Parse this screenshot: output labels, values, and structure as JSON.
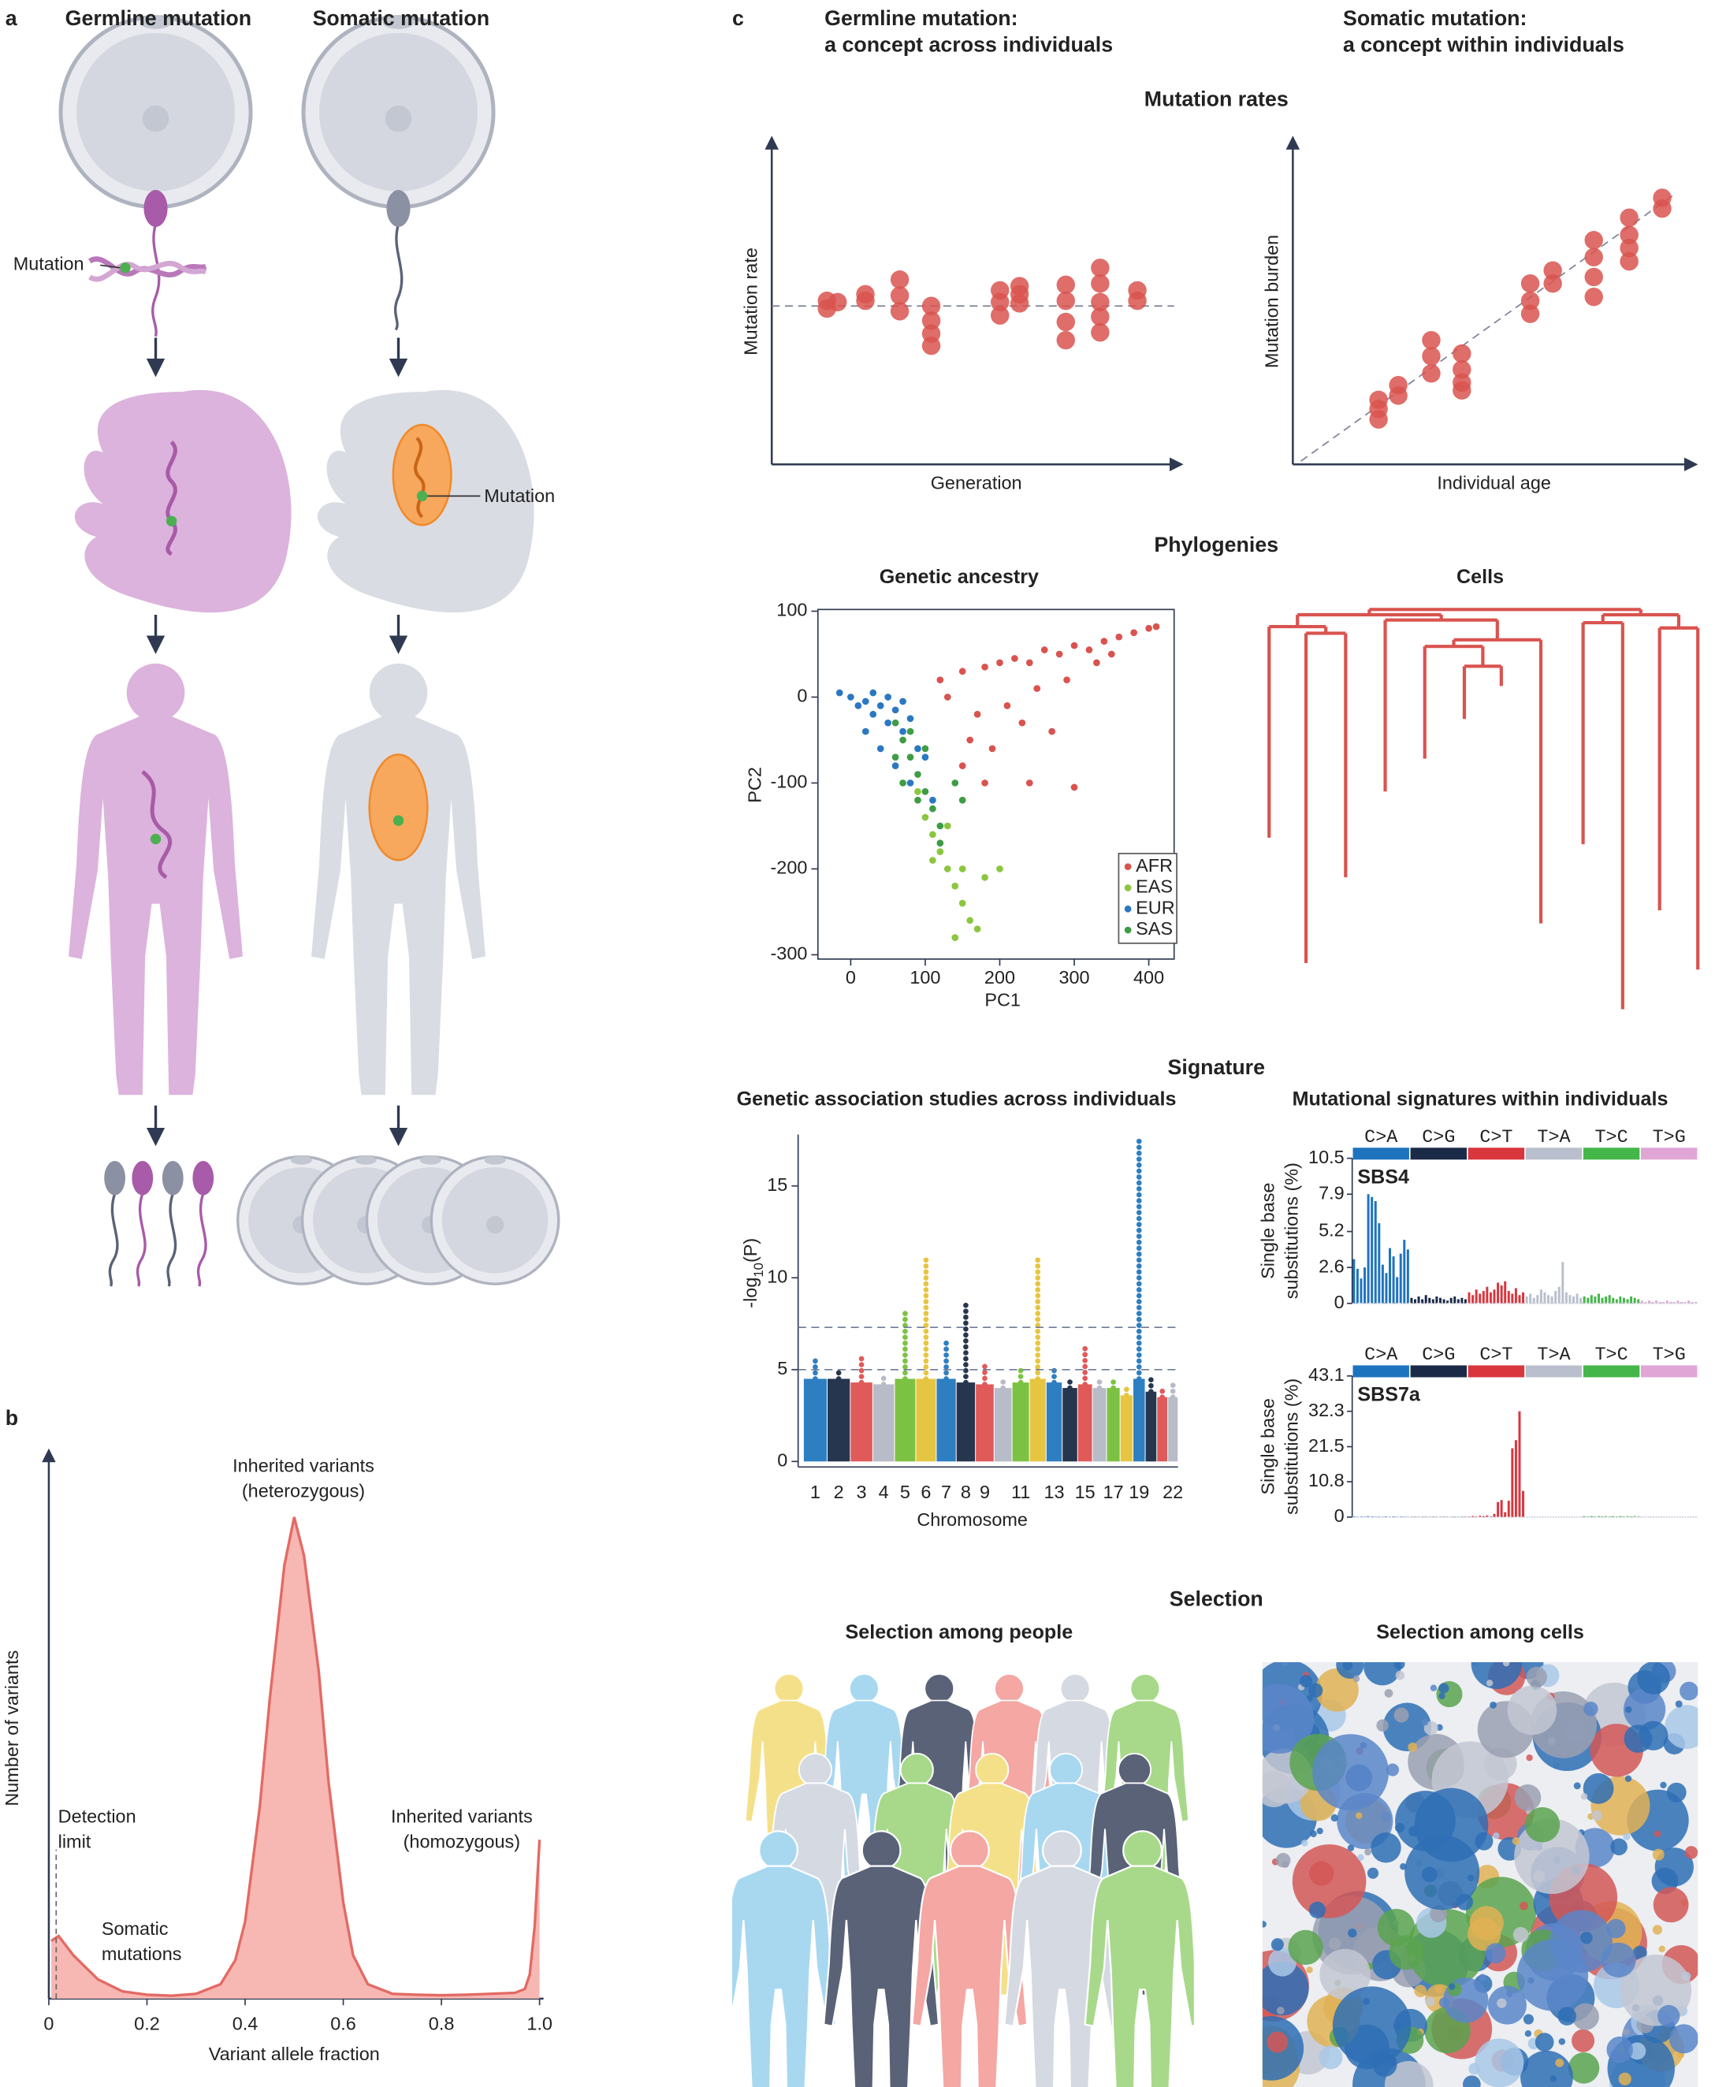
{
  "figure": {
    "label_a": "a",
    "label_b": "b",
    "label_c": "c",
    "germline_title": "Germline mutation",
    "somatic_title": "Somatic mutation",
    "mutation_label_germline": "Mutation",
    "mutation_label_somatic": "Mutation",
    "column_germline": [
      "Germline mutation:",
      "a concept across individuals"
    ],
    "column_somatic": [
      "Somatic mutation:",
      "a concept within individuals"
    ],
    "section_rates": "Mutation rates",
    "section_phylogenies": "Phylogenies",
    "section_signature": "Signature",
    "section_selection": "Selection",
    "cells_title": "Cells",
    "signatures_title": "Mutational signatures within individuals",
    "people_title": "Selection among people",
    "cells_selection_title": "Selection among cells"
  },
  "chart_data": [
    {
      "type": "area",
      "xlabel": "Variant allele fraction",
      "ylabel": "Number of variants",
      "x": [
        0.005,
        0.02,
        0.05,
        0.1,
        0.15,
        0.2,
        0.25,
        0.3,
        0.35,
        0.38,
        0.4,
        0.43,
        0.45,
        0.48,
        0.5,
        0.52,
        0.55,
        0.57,
        0.6,
        0.62,
        0.65,
        0.7,
        0.75,
        0.8,
        0.85,
        0.9,
        0.95,
        0.97,
        0.98,
        0.99,
        1.0
      ],
      "values": [
        12,
        13,
        9,
        4,
        1.5,
        0.8,
        0.6,
        1,
        3,
        8,
        16,
        40,
        62,
        90,
        100,
        92,
        68,
        45,
        20,
        9,
        3,
        1,
        0.8,
        0.7,
        0.8,
        1,
        1.2,
        2,
        5,
        15,
        33
      ],
      "color": "#f7b7b3",
      "line_color": "#e36a64",
      "xlim": [
        0,
        1
      ],
      "ylim": [
        0,
        100
      ],
      "xticks": [
        0,
        0.2,
        0.4,
        0.6,
        0.8,
        {
          "value": 1,
          "label": "1.0"
        }
      ],
      "detection_limit": 0.015,
      "detection_label": [
        "Detection",
        "limit"
      ],
      "somatic_label": [
        "Somatic",
        "mutations"
      ],
      "het_label": [
        "Inherited variants",
        "(heterozygous)"
      ],
      "hom_label": [
        "Inherited variants",
        "(homozygous)"
      ]
    },
    {
      "type": "scatter",
      "xlabel": "Generation",
      "ylabel": "Mutation rate",
      "color": "#d9534f",
      "xlim": [
        0,
        100
      ],
      "ylim": [
        0,
        100
      ],
      "x": [
        13.5,
        13.5,
        16.1,
        22.9,
        22.9,
        31.3,
        31.3,
        31.3,
        39,
        39,
        39,
        39,
        55.8,
        55.8,
        55.8,
        60.6,
        60.6,
        60.6,
        71.9,
        71.9,
        71.9,
        71.9,
        80.3,
        80.3,
        80.3,
        80.3,
        80.3,
        89.4,
        89.4
      ],
      "y": [
        50.2,
        47.8,
        49.8,
        52.2,
        50.2,
        56.7,
        51.8,
        47,
        48.6,
        44.1,
        40.1,
        36.4,
        53.4,
        49.8,
        45.7,
        54.7,
        52.2,
        49.4,
        55.1,
        50.2,
        43.7,
        38.1,
        60.3,
        55.5,
        49.8,
        45.3,
        40.5,
        53.4,
        50.2
      ],
      "reference_line": 48.6
    },
    {
      "type": "scatter",
      "xlabel": "Individual age",
      "ylabel": "Mutation burden",
      "color": "#d9534f",
      "xlim": [
        0,
        100
      ],
      "ylim": [
        0,
        100
      ],
      "x": [
        21.3,
        21.3,
        21.3,
        26.2,
        26.2,
        34.4,
        34.4,
        34.4,
        42,
        42,
        42,
        42,
        59,
        59,
        59,
        64.6,
        64.6,
        74.8,
        74.8,
        74.8,
        74.8,
        83.6,
        83.6,
        83.6,
        83.6,
        91.8,
        91.8
      ],
      "y": [
        13.8,
        17,
        19.8,
        21.1,
        24.3,
        38.1,
        33.2,
        27.9,
        34,
        29.1,
        25.1,
        22.7,
        55.5,
        50.2,
        46.2,
        55.5,
        59.5,
        68.8,
        63.6,
        57.5,
        51.4,
        75.7,
        70.4,
        66.4,
        62.3,
        81.8,
        78.5
      ],
      "reference_line": {
        "x": [
          2,
          95
        ],
        "y": [
          1,
          83
        ]
      }
    },
    {
      "type": "scatter",
      "title": "Genetic ancestry",
      "xlabel": "PC1",
      "ylabel": "PC2",
      "xlim": [
        -44,
        434
      ],
      "ylim": [
        -305,
        102
      ],
      "xticks": [
        0,
        100,
        200,
        300,
        400
      ],
      "yticks": [
        100,
        0,
        -100,
        -200,
        -300
      ],
      "legend": "bottom-right",
      "series": [
        {
          "name": "AFR",
          "color": "#d9534f",
          "x": [
            120,
            150,
            180,
            200,
            220,
            240,
            260,
            280,
            300,
            320,
            340,
            360,
            380,
            400,
            410,
            170,
            210,
            250,
            290,
            330,
            160,
            190,
            230,
            270,
            240,
            180,
            150,
            130,
            300,
            350
          ],
          "y": [
            20,
            30,
            35,
            40,
            45,
            40,
            55,
            50,
            60,
            55,
            65,
            70,
            75,
            80,
            82,
            -20,
            -10,
            10,
            20,
            40,
            -50,
            -60,
            -30,
            -40,
            -100,
            -100,
            -80,
            0,
            -105,
            50
          ]
        },
        {
          "name": "EAS",
          "color": "#8cc63f",
          "x": [
            90,
            100,
            110,
            120,
            130,
            140,
            150,
            160,
            170,
            110,
            130,
            150,
            140,
            180,
            200
          ],
          "y": [
            -110,
            -140,
            -160,
            -180,
            -200,
            -220,
            -240,
            -260,
            -270,
            -190,
            -150,
            -200,
            -280,
            -210,
            -200
          ]
        },
        {
          "name": "EUR",
          "color": "#2b78c2",
          "x": [
            -15,
            0,
            10,
            20,
            30,
            40,
            50,
            60,
            70,
            80,
            90,
            100,
            20,
            40,
            60,
            30,
            50,
            70,
            80,
            110
          ],
          "y": [
            5,
            0,
            -10,
            -5,
            -20,
            -10,
            -30,
            -15,
            -40,
            -25,
            -60,
            -70,
            -40,
            -60,
            -80,
            5,
            0,
            -5,
            -100,
            -120
          ]
        },
        {
          "name": "SAS",
          "color": "#3f9c46",
          "x": [
            60,
            70,
            80,
            90,
            100,
            110,
            120,
            80,
            100,
            60,
            70,
            90,
            120,
            140,
            150
          ],
          "y": [
            -30,
            -50,
            -70,
            -90,
            -110,
            -130,
            -150,
            -40,
            -60,
            -70,
            -100,
            -120,
            -170,
            -100,
            -120
          ]
        }
      ]
    },
    {
      "type": "manhattan",
      "title": "Genetic association studies across individuals",
      "xlabel": "Chromosome",
      "ylabel_parts": [
        "-log",
        "10",
        "(P)"
      ],
      "categories": [
        "1",
        "2",
        "3",
        "4",
        "5",
        "6",
        "7",
        "8",
        "9",
        null,
        "11",
        null,
        "13",
        null,
        "15",
        null,
        "17",
        null,
        "19",
        null,
        null,
        "22"
      ],
      "values": [
        5.6,
        4.9,
        5.7,
        4.6,
        8.3,
        11.2,
        6.5,
        8.7,
        5.3,
        4.6,
        5.1,
        11.1,
        5.0,
        4.5,
        6.4,
        4.5,
        4.5,
        4.0,
        17.5,
        4.5,
        4.0,
        4.3
      ],
      "bulk_values": [
        4.5,
        4.5,
        4.3,
        4.2,
        4.5,
        4.5,
        4.5,
        4.3,
        4.2,
        4.0,
        4.3,
        4.5,
        4.3,
        4.0,
        4.2,
        4.0,
        4.0,
        3.6,
        4.5,
        3.8,
        3.5,
        3.5
      ],
      "colors": [
        "#2e7fc1",
        "#27364f",
        "#e05a5a",
        "#b8bcc8",
        "#7cc242",
        "#e6c542"
      ],
      "ylim": [
        -0.3,
        17.8
      ],
      "yticks": [
        0,
        5,
        10,
        15
      ],
      "thresholds": [
        7.3,
        5
      ]
    },
    {
      "type": "bar",
      "name": "SBS4",
      "ylabel": [
        "Single base",
        "substitutions (%)"
      ],
      "mutation_types": [
        "C>A",
        "C>G",
        "C>T",
        "T>A",
        "T>C",
        "T>G"
      ],
      "type_colors": [
        "#1e73be",
        "#1b2a47",
        "#d9363e",
        "#b9bfcc",
        "#45b649",
        "#e0a6d6"
      ],
      "ylim": [
        0,
        10.5
      ],
      "yticks": [
        0,
        2.6,
        5.2,
        7.9,
        10.5
      ],
      "values": [
        3.2,
        2.5,
        1.8,
        2.6,
        7.9,
        7.7,
        7.4,
        5.8,
        2.8,
        2.2,
        4.0,
        3.4,
        1.9,
        3.6,
        4.6,
        3.9,
        0.4,
        0.3,
        0.5,
        0.3,
        0.6,
        0.4,
        0.3,
        0.5,
        0.4,
        0.3,
        0.2,
        0.4,
        0.5,
        0.3,
        0.4,
        0.3,
        0.8,
        0.6,
        1.0,
        0.7,
        0.9,
        1.2,
        0.8,
        1.0,
        1.5,
        1.3,
        1.6,
        0.9,
        0.7,
        1.1,
        0.6,
        0.8,
        0.5,
        0.7,
        0.4,
        0.6,
        1.0,
        0.8,
        0.6,
        0.5,
        0.9,
        1.2,
        3.0,
        0.8,
        0.6,
        0.5,
        0.7,
        0.4,
        0.5,
        0.4,
        0.6,
        0.5,
        0.7,
        0.4,
        0.5,
        0.6,
        0.4,
        0.3,
        0.5,
        0.4,
        0.3,
        0.5,
        0.4,
        0.3,
        0.2,
        0.1,
        0.2,
        0.1,
        0.2,
        0.1,
        0.1,
        0.2,
        0.1,
        0.1,
        0.2,
        0.1,
        0.1,
        0.2,
        0.1,
        0.1
      ]
    },
    {
      "type": "bar",
      "name": "SBS7a",
      "ylabel": [
        "Single base",
        "substitutions (%)"
      ],
      "mutation_types": [
        "C>A",
        "C>G",
        "C>T",
        "T>A",
        "T>C",
        "T>G"
      ],
      "type_colors": [
        "#1e73be",
        "#1b2a47",
        "#d9363e",
        "#b9bfcc",
        "#45b649",
        "#e0a6d6"
      ],
      "ylim": [
        0,
        43.1
      ],
      "yticks": [
        0,
        10.8,
        21.5,
        32.3,
        43.1
      ],
      "values": [
        0.2,
        0.1,
        0.2,
        0.1,
        0.3,
        0.2,
        0.1,
        0.2,
        0.1,
        0.2,
        0.1,
        0.2,
        0.1,
        0.2,
        0.1,
        0.1,
        0.1,
        0.1,
        0.1,
        0.1,
        0.1,
        0.1,
        0.1,
        0.1,
        0.1,
        0.1,
        0.1,
        0.1,
        0.1,
        0.1,
        0.1,
        0.1,
        0.2,
        0.3,
        0.2,
        0.4,
        0.3,
        0.5,
        0.2,
        1.0,
        4.6,
        5.2,
        1.5,
        5.0,
        21.0,
        23.5,
        32.3,
        8.0,
        0.1,
        0.1,
        0.1,
        0.1,
        0.1,
        0.1,
        0.1,
        0.1,
        0.1,
        0.1,
        0.1,
        0.1,
        0.1,
        0.1,
        0.1,
        0.1,
        0.3,
        0.2,
        0.3,
        0.2,
        0.3,
        0.2,
        0.3,
        0.2,
        0.3,
        0.2,
        0.3,
        0.2,
        0.3,
        0.2,
        0.3,
        0.2,
        0.1,
        0.1,
        0.1,
        0.1,
        0.1,
        0.1,
        0.1,
        0.1,
        0.1,
        0.1,
        0.1,
        0.1,
        0.1,
        0.1,
        0.1,
        0.1
      ]
    }
  ]
}
